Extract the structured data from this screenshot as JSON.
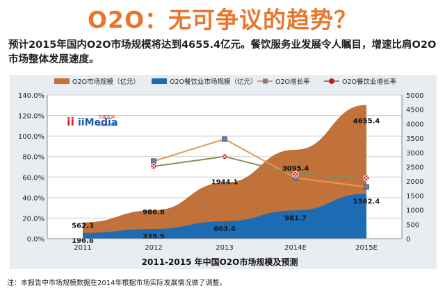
{
  "header": {
    "title": "O2O：无可争议的趋势？",
    "subtitle": "预计2015年国内O2O市场规模将达到4655.4亿元。餐饮服务业发展令人瞩目，增速比肩O2O市场整体发展速度。"
  },
  "logo": {
    "brand": "iiMedia",
    "brand_sub": "Research",
    "brand_cn": "艾媒咨询"
  },
  "footnote": "注：本报告中市场规模数据在2014年根据市场实际发展情况做了调整。",
  "colors": {
    "title": "#e8762c",
    "o2o_area": "#c0723a",
    "catering_area": "#1c6bb3",
    "o2o_growth": "#e29a55",
    "catering_growth": "#8a8a5a"
  },
  "chart_data": {
    "type": "area",
    "title": "2011-2015 年中国O2O市场规模及预测",
    "categories": [
      "2011",
      "2012",
      "2013",
      "2014E",
      "2015E"
    ],
    "y_left": {
      "ticks": [
        "0.0%",
        "20.0%",
        "40.0%",
        "60.0%",
        "80.0%",
        "100.0%",
        "120.0%",
        "140.0%"
      ],
      "range": [
        0,
        1.4
      ]
    },
    "y_right": {
      "ticks": [
        "0",
        "500",
        "1000",
        "1500",
        "2000",
        "2500",
        "3000",
        "3500",
        "4000",
        "4500",
        "5000"
      ],
      "range": [
        0,
        5000
      ]
    },
    "legend": {
      "position": "top",
      "items": [
        "O2O市场规模（亿元）",
        "O2O餐饮业市场规模（亿元）",
        "O2O增长率",
        "O2O餐饮业增长率"
      ]
    },
    "series": [
      {
        "name": "O2O市场规模（亿元）",
        "axis": "right",
        "kind": "area",
        "values": [
          562.3,
          986.8,
          1944.1,
          3095.4,
          4655.4
        ],
        "labels": [
          "562.3",
          "986.8",
          "1944.1",
          "3095.4",
          "4655.4"
        ]
      },
      {
        "name": "O2O餐饮业市场规模（亿元）",
        "axis": "right",
        "kind": "area",
        "values": [
          196.8,
          335.5,
          603.4,
          981.7,
          1562.4
        ],
        "labels": [
          "196.8",
          "335.5",
          "603.4",
          "981.7",
          "1562.4"
        ]
      },
      {
        "name": "O2O增长率",
        "axis": "left",
        "kind": "line",
        "values": [
          null,
          0.755,
          0.97,
          0.592,
          0.504
        ]
      },
      {
        "name": "O2O餐饮业增长率",
        "axis": "left",
        "kind": "line",
        "values": [
          null,
          0.705,
          0.8,
          0.627,
          0.592
        ]
      }
    ]
  }
}
